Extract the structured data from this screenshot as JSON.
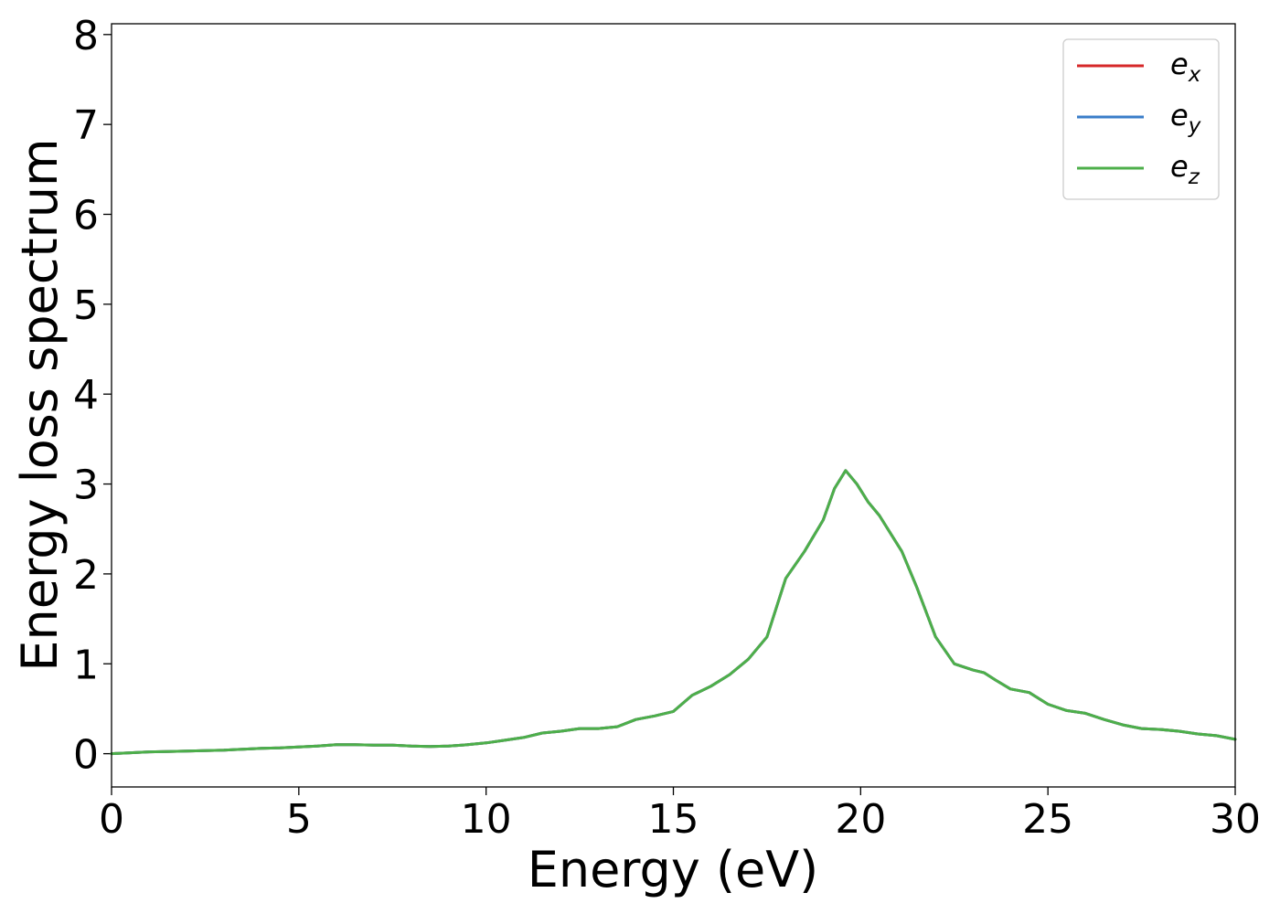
{
  "chart_data": {
    "type": "line",
    "title": "",
    "xlabel": "Energy (eV)",
    "ylabel": "Energy loss spectrum",
    "xlim": [
      0,
      30
    ],
    "ylim": [
      -0.37,
      8.12
    ],
    "xticks": [
      0,
      5,
      10,
      15,
      20,
      25,
      30
    ],
    "yticks": [
      0,
      1,
      2,
      3,
      4,
      5,
      6,
      7,
      8
    ],
    "grid": false,
    "legend_position": "top-right",
    "x": [
      0,
      0.5,
      1,
      1.5,
      2,
      2.5,
      3,
      3.5,
      4,
      4.5,
      5,
      5.5,
      6,
      6.5,
      7,
      7.5,
      8,
      8.5,
      9,
      9.5,
      10,
      10.5,
      11,
      11.5,
      12,
      12.5,
      13,
      13.5,
      14,
      14.5,
      15,
      15.5,
      16,
      16.5,
      17,
      17.5,
      18,
      18.5,
      19,
      19.3,
      19.6,
      19.9,
      20.2,
      20.5,
      20.8,
      21.1,
      21.5,
      22,
      22.5,
      23,
      23.3,
      23.6,
      24,
      24.5,
      25,
      25.5,
      26,
      26.5,
      27,
      27.5,
      28,
      28.5,
      29,
      29.5,
      30
    ],
    "series": [
      {
        "name": "e_x",
        "label_base": "e",
        "label_sub": "x",
        "color": "#d62728",
        "values": [
          0.0,
          0.01,
          0.02,
          0.025,
          0.03,
          0.035,
          0.04,
          0.05,
          0.06,
          0.065,
          0.075,
          0.085,
          0.1,
          0.1,
          0.095,
          0.095,
          0.085,
          0.08,
          0.085,
          0.1,
          0.12,
          0.15,
          0.18,
          0.23,
          0.25,
          0.28,
          0.28,
          0.3,
          0.38,
          0.42,
          0.47,
          0.65,
          0.75,
          0.88,
          1.05,
          1.3,
          1.95,
          2.25,
          2.6,
          2.95,
          3.15,
          3.0,
          2.8,
          2.65,
          2.45,
          2.25,
          1.85,
          1.3,
          1.0,
          0.93,
          0.9,
          0.82,
          0.72,
          0.68,
          0.55,
          0.48,
          0.45,
          0.38,
          0.32,
          0.28,
          0.27,
          0.25,
          0.22,
          0.2,
          0.16
        ]
      },
      {
        "name": "e_y",
        "label_base": "e",
        "label_sub": "y",
        "color": "#3a7dc9",
        "values": [
          0.0,
          0.01,
          0.02,
          0.025,
          0.03,
          0.035,
          0.04,
          0.05,
          0.06,
          0.065,
          0.075,
          0.085,
          0.1,
          0.1,
          0.095,
          0.095,
          0.085,
          0.08,
          0.085,
          0.1,
          0.12,
          0.15,
          0.18,
          0.23,
          0.25,
          0.28,
          0.28,
          0.3,
          0.38,
          0.42,
          0.47,
          0.65,
          0.75,
          0.88,
          1.05,
          1.3,
          1.95,
          2.25,
          2.6,
          2.95,
          3.15,
          3.0,
          2.8,
          2.65,
          2.45,
          2.25,
          1.85,
          1.3,
          1.0,
          0.93,
          0.9,
          0.82,
          0.72,
          0.68,
          0.55,
          0.48,
          0.45,
          0.38,
          0.32,
          0.28,
          0.27,
          0.25,
          0.22,
          0.2,
          0.16
        ]
      },
      {
        "name": "e_z",
        "label_base": "e",
        "label_sub": "z",
        "color": "#4daf4a",
        "values": [
          0.0,
          0.01,
          0.02,
          0.025,
          0.03,
          0.035,
          0.04,
          0.05,
          0.06,
          0.065,
          0.075,
          0.085,
          0.1,
          0.1,
          0.095,
          0.095,
          0.085,
          0.08,
          0.085,
          0.1,
          0.12,
          0.15,
          0.18,
          0.23,
          0.25,
          0.28,
          0.28,
          0.3,
          0.38,
          0.42,
          0.47,
          0.65,
          0.75,
          0.88,
          1.05,
          1.3,
          1.95,
          2.25,
          2.6,
          2.95,
          3.15,
          3.0,
          2.8,
          2.65,
          2.45,
          2.25,
          1.85,
          1.3,
          1.0,
          0.93,
          0.9,
          0.82,
          0.72,
          0.68,
          0.55,
          0.48,
          0.45,
          0.38,
          0.32,
          0.28,
          0.27,
          0.25,
          0.22,
          0.2,
          0.16
        ]
      }
    ]
  }
}
